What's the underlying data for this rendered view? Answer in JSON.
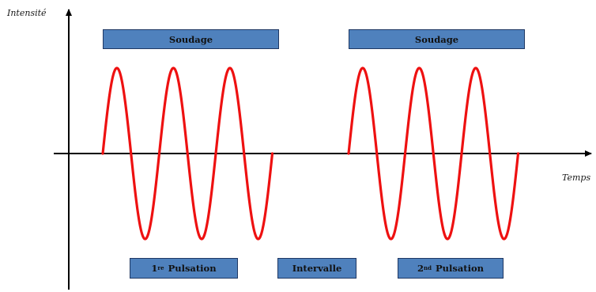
{
  "axes": {
    "y_label": "Intensité",
    "x_label": "Temps"
  },
  "top_labels": {
    "welding_1": "Soudage",
    "welding_2": "Soudage"
  },
  "bottom_labels": {
    "pulse_1_number": "1",
    "pulse_1_suffix": "re",
    "pulse_1_word": " Pulsation",
    "interval": "Intervalle",
    "pulse_2_number": "2",
    "pulse_2_suffix": "nd",
    "pulse_2_word": " Pulsation"
  },
  "colors": {
    "wave": "#ee1111",
    "box_fill": "#4f81bd",
    "box_border": "#1f3864",
    "axis": "#000000"
  },
  "waveform": {
    "pulses": 2,
    "cycles_per_pulse": 3,
    "amplitude_relative": 1
  }
}
